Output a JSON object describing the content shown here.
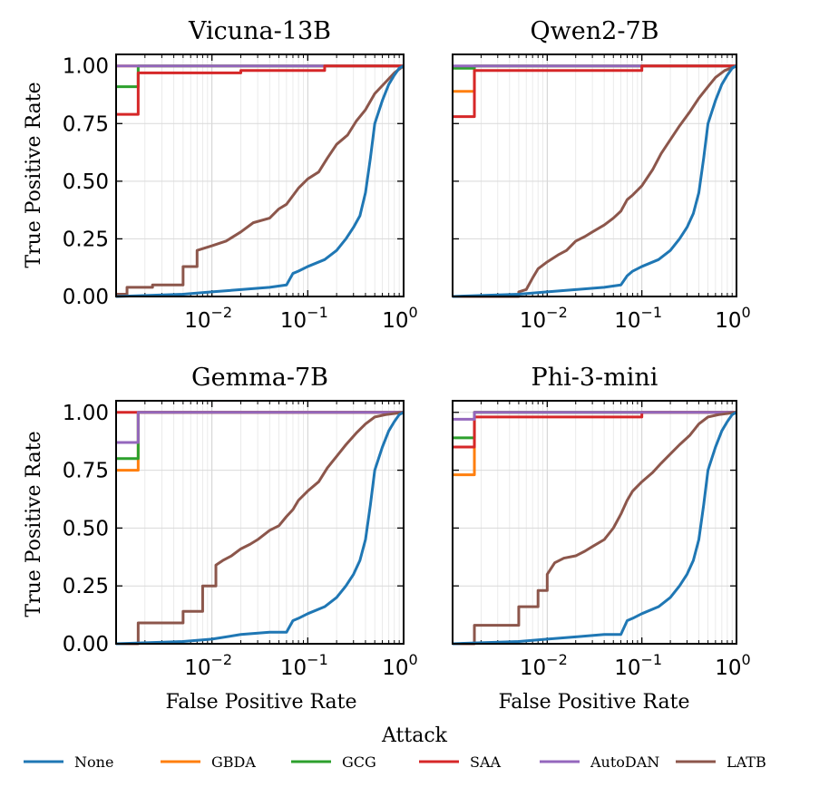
{
  "figure": {
    "ylabel": "True Positive Rate",
    "xlabel": "False Positive Rate",
    "legend_title": "Attack"
  },
  "axes": {
    "xscale": "log",
    "xlim": [
      0.001,
      1
    ],
    "ylim": [
      0,
      1.05
    ],
    "xticks": [
      {
        "base": "10",
        "exp": "−2"
      },
      {
        "base": "10",
        "exp": "−1"
      },
      {
        "base": "10",
        "exp": "0"
      }
    ],
    "yticks": [
      "0.00",
      "0.25",
      "0.50",
      "0.75",
      "1.00"
    ]
  },
  "colors": {
    "None": "#1f77b4",
    "GBDA": "#ff7f0e",
    "GCG": "#2ca02c",
    "SAA": "#d62728",
    "AutoDAN": "#9467bd",
    "LATB": "#8c564b"
  },
  "legend": [
    "None",
    "GBDA",
    "GCG",
    "SAA",
    "AutoDAN",
    "LATB"
  ],
  "chart_data": [
    {
      "type": "line",
      "title": "Vicuna-13B",
      "xlabel": "",
      "ylabel": "True Positive Rate",
      "series": [
        {
          "name": "GBDA",
          "x": [
            0.001,
            0.0017,
            0.0017,
            1
          ],
          "y": [
            1.0,
            1.0,
            1.0,
            1.0
          ]
        },
        {
          "name": "GCG",
          "x": [
            0.001,
            0.0017,
            0.0017,
            1
          ],
          "y": [
            0.91,
            0.91,
            1.0,
            1.0
          ]
        },
        {
          "name": "AutoDAN",
          "x": [
            0.001,
            1
          ],
          "y": [
            1.0,
            1.0
          ]
        },
        {
          "name": "SAA",
          "x": [
            0.001,
            0.0017,
            0.0017,
            0.02,
            0.02,
            0.15,
            0.15,
            1
          ],
          "y": [
            0.79,
            0.79,
            0.97,
            0.97,
            0.98,
            0.98,
            1.0,
            1.0
          ]
        },
        {
          "name": "LATB",
          "x": [
            0.001,
            0.0013,
            0.0013,
            0.0024,
            0.0024,
            0.005,
            0.005,
            0.007,
            0.007,
            0.01,
            0.014,
            0.02,
            0.027,
            0.04,
            0.05,
            0.06,
            0.08,
            0.1,
            0.13,
            0.16,
            0.2,
            0.26,
            0.32,
            0.4,
            0.5,
            0.65,
            0.8,
            1
          ],
          "y": [
            0.01,
            0.01,
            0.04,
            0.04,
            0.05,
            0.05,
            0.13,
            0.13,
            0.2,
            0.22,
            0.24,
            0.28,
            0.32,
            0.34,
            0.38,
            0.4,
            0.47,
            0.51,
            0.54,
            0.6,
            0.66,
            0.7,
            0.76,
            0.81,
            0.88,
            0.93,
            0.97,
            1.0
          ]
        },
        {
          "name": "None",
          "x": [
            0.001,
            0.005,
            0.01,
            0.02,
            0.04,
            0.06,
            0.07,
            0.08,
            0.1,
            0.15,
            0.2,
            0.25,
            0.3,
            0.35,
            0.4,
            0.45,
            0.5,
            0.6,
            0.7,
            0.8,
            0.9,
            1
          ],
          "y": [
            0.0,
            0.01,
            0.02,
            0.03,
            0.04,
            0.05,
            0.1,
            0.11,
            0.13,
            0.16,
            0.2,
            0.25,
            0.3,
            0.35,
            0.45,
            0.6,
            0.75,
            0.85,
            0.92,
            0.96,
            0.99,
            1.0
          ]
        }
      ]
    },
    {
      "type": "line",
      "title": "Qwen2-7B",
      "xlabel": "",
      "ylabel": "",
      "series": [
        {
          "name": "GBDA",
          "x": [
            0.001,
            0.0017,
            0.0017,
            1
          ],
          "y": [
            0.89,
            0.89,
            1.0,
            1.0
          ]
        },
        {
          "name": "GCG",
          "x": [
            0.001,
            0.0017,
            0.0017,
            1
          ],
          "y": [
            0.99,
            0.99,
            1.0,
            1.0
          ]
        },
        {
          "name": "AutoDAN",
          "x": [
            0.001,
            1
          ],
          "y": [
            1.0,
            1.0
          ]
        },
        {
          "name": "SAA",
          "x": [
            0.001,
            0.0017,
            0.0017,
            0.1,
            0.1,
            1
          ],
          "y": [
            0.78,
            0.78,
            0.98,
            0.98,
            1.0,
            1.0
          ]
        },
        {
          "name": "LATB",
          "x": [
            0.001,
            0.005,
            0.005,
            0.006,
            0.007,
            0.008,
            0.01,
            0.013,
            0.016,
            0.02,
            0.025,
            0.03,
            0.04,
            0.05,
            0.06,
            0.07,
            0.08,
            0.1,
            0.13,
            0.16,
            0.2,
            0.25,
            0.32,
            0.4,
            0.5,
            0.6,
            0.75,
            1
          ],
          "y": [
            0.0,
            0.0,
            0.02,
            0.03,
            0.08,
            0.12,
            0.15,
            0.18,
            0.2,
            0.24,
            0.26,
            0.28,
            0.31,
            0.34,
            0.37,
            0.42,
            0.44,
            0.48,
            0.55,
            0.62,
            0.68,
            0.74,
            0.8,
            0.86,
            0.91,
            0.95,
            0.98,
            1.0
          ]
        },
        {
          "name": "None",
          "x": [
            0.001,
            0.005,
            0.01,
            0.02,
            0.04,
            0.06,
            0.07,
            0.08,
            0.1,
            0.15,
            0.2,
            0.25,
            0.3,
            0.35,
            0.4,
            0.45,
            0.5,
            0.6,
            0.7,
            0.8,
            0.9,
            1
          ],
          "y": [
            0.0,
            0.01,
            0.02,
            0.03,
            0.04,
            0.05,
            0.09,
            0.11,
            0.13,
            0.16,
            0.2,
            0.25,
            0.3,
            0.36,
            0.45,
            0.6,
            0.75,
            0.85,
            0.92,
            0.96,
            0.99,
            1.0
          ]
        }
      ]
    },
    {
      "type": "line",
      "title": "Gemma-7B",
      "xlabel": "False Positive Rate",
      "ylabel": "True Positive Rate",
      "series": [
        {
          "name": "GBDA",
          "x": [
            0.001,
            0.0017,
            0.0017,
            1
          ],
          "y": [
            0.75,
            0.75,
            1.0,
            1.0
          ]
        },
        {
          "name": "GCG",
          "x": [
            0.001,
            0.0017,
            0.0017,
            1
          ],
          "y": [
            0.8,
            0.8,
            1.0,
            1.0
          ]
        },
        {
          "name": "SAA",
          "x": [
            0.001,
            1
          ],
          "y": [
            1.0,
            1.0
          ]
        },
        {
          "name": "AutoDAN",
          "x": [
            0.001,
            0.0017,
            0.0017,
            1
          ],
          "y": [
            0.87,
            0.87,
            1.0,
            1.0
          ]
        },
        {
          "name": "LATB",
          "x": [
            0.001,
            0.0017,
            0.0017,
            0.005,
            0.005,
            0.008,
            0.008,
            0.011,
            0.011,
            0.013,
            0.016,
            0.02,
            0.025,
            0.03,
            0.04,
            0.05,
            0.06,
            0.07,
            0.08,
            0.1,
            0.13,
            0.16,
            0.2,
            0.25,
            0.32,
            0.4,
            0.5,
            0.65,
            1
          ],
          "y": [
            0.0,
            0.0,
            0.09,
            0.09,
            0.14,
            0.14,
            0.25,
            0.25,
            0.34,
            0.36,
            0.38,
            0.41,
            0.43,
            0.45,
            0.49,
            0.51,
            0.55,
            0.58,
            0.62,
            0.66,
            0.7,
            0.76,
            0.81,
            0.86,
            0.91,
            0.95,
            0.98,
            0.99,
            1.0
          ]
        },
        {
          "name": "None",
          "x": [
            0.001,
            0.005,
            0.01,
            0.02,
            0.04,
            0.06,
            0.07,
            0.08,
            0.1,
            0.15,
            0.2,
            0.25,
            0.3,
            0.35,
            0.4,
            0.45,
            0.5,
            0.6,
            0.7,
            0.8,
            0.9,
            1
          ],
          "y": [
            0.0,
            0.01,
            0.02,
            0.04,
            0.05,
            0.05,
            0.1,
            0.11,
            0.13,
            0.16,
            0.2,
            0.25,
            0.3,
            0.36,
            0.45,
            0.6,
            0.75,
            0.85,
            0.92,
            0.96,
            0.99,
            1.0
          ]
        }
      ]
    },
    {
      "type": "line",
      "title": "Phi-3-mini",
      "xlabel": "False Positive Rate",
      "ylabel": "",
      "series": [
        {
          "name": "GBDA",
          "x": [
            0.001,
            0.0017,
            0.0017,
            1
          ],
          "y": [
            0.73,
            0.73,
            1.0,
            1.0
          ]
        },
        {
          "name": "GCG",
          "x": [
            0.001,
            0.0017,
            0.0017,
            1
          ],
          "y": [
            0.89,
            0.89,
            1.0,
            1.0
          ]
        },
        {
          "name": "SAA",
          "x": [
            0.001,
            0.0017,
            0.0017,
            0.1,
            0.1,
            1
          ],
          "y": [
            0.85,
            0.85,
            0.98,
            0.98,
            1.0,
            1.0
          ]
        },
        {
          "name": "AutoDAN",
          "x": [
            0.001,
            0.0017,
            0.0017,
            1
          ],
          "y": [
            0.97,
            0.97,
            1.0,
            1.0
          ]
        },
        {
          "name": "LATB",
          "x": [
            0.001,
            0.0017,
            0.0017,
            0.005,
            0.005,
            0.008,
            0.008,
            0.01,
            0.01,
            0.012,
            0.015,
            0.02,
            0.025,
            0.03,
            0.04,
            0.05,
            0.06,
            0.07,
            0.08,
            0.1,
            0.13,
            0.16,
            0.2,
            0.25,
            0.32,
            0.4,
            0.5,
            0.65,
            1
          ],
          "y": [
            0.0,
            0.0,
            0.08,
            0.08,
            0.16,
            0.16,
            0.23,
            0.23,
            0.3,
            0.35,
            0.37,
            0.38,
            0.4,
            0.42,
            0.45,
            0.5,
            0.56,
            0.62,
            0.66,
            0.7,
            0.74,
            0.78,
            0.82,
            0.86,
            0.9,
            0.95,
            0.98,
            0.99,
            1.0
          ]
        },
        {
          "name": "None",
          "x": [
            0.001,
            0.005,
            0.01,
            0.02,
            0.04,
            0.05,
            0.06,
            0.07,
            0.08,
            0.1,
            0.15,
            0.2,
            0.25,
            0.3,
            0.35,
            0.4,
            0.45,
            0.5,
            0.6,
            0.7,
            0.8,
            0.9,
            1
          ],
          "y": [
            0.0,
            0.01,
            0.02,
            0.03,
            0.04,
            0.04,
            0.04,
            0.1,
            0.11,
            0.13,
            0.16,
            0.2,
            0.25,
            0.3,
            0.36,
            0.45,
            0.6,
            0.75,
            0.85,
            0.92,
            0.96,
            0.99,
            1.0
          ]
        }
      ]
    }
  ]
}
